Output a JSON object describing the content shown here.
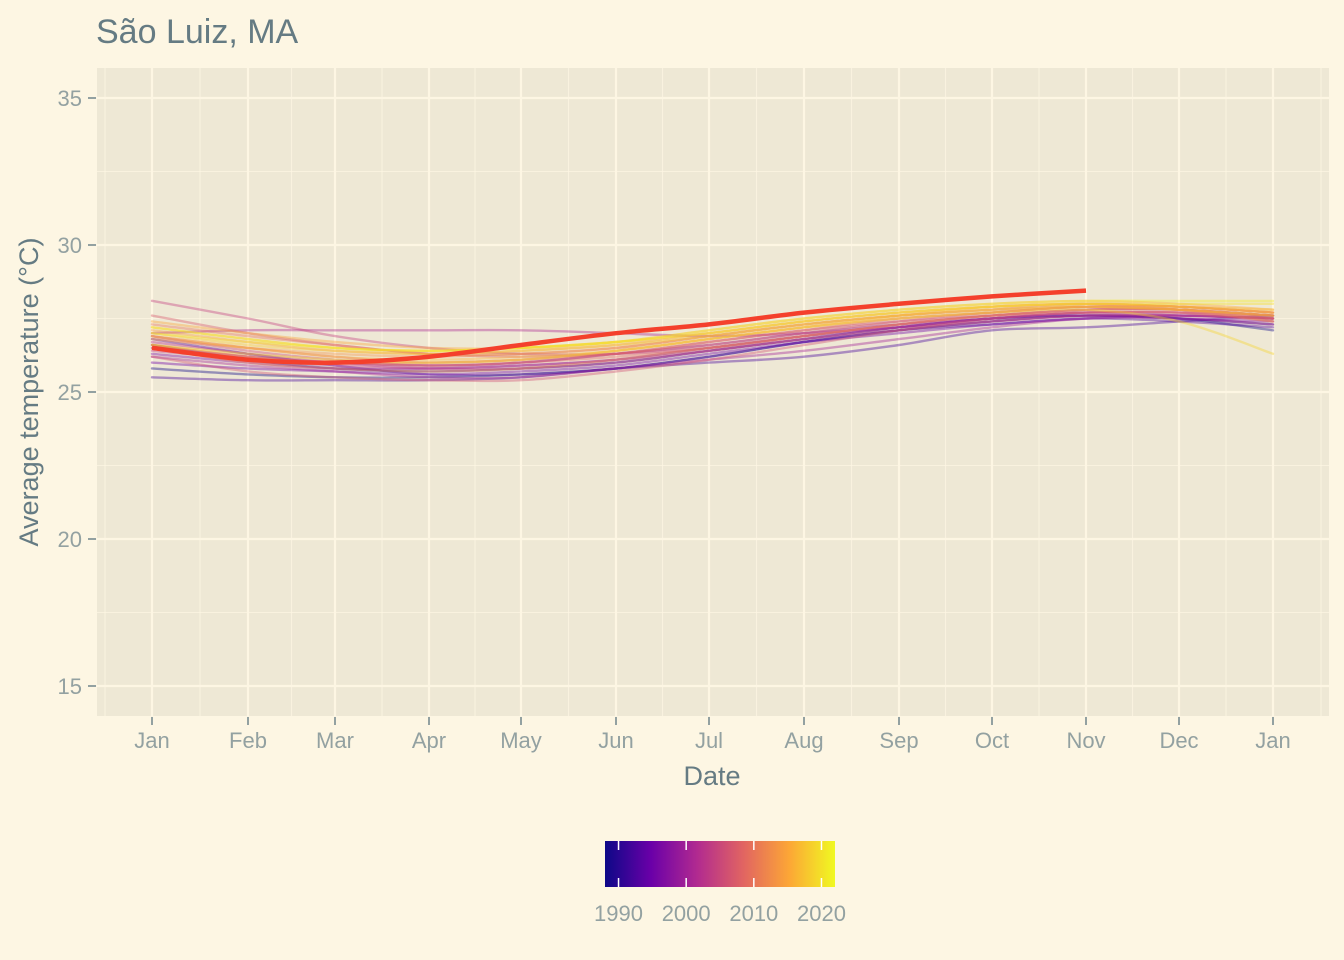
{
  "chart_data": {
    "type": "line",
    "title": "São Luiz, MA",
    "xlabel": "Date",
    "ylabel": "Average temperature (°C)",
    "x_ticks": [
      "Jan",
      "Feb",
      "Mar",
      "Apr",
      "May",
      "Jun",
      "Jul",
      "Aug",
      "Sep",
      "Oct",
      "Nov",
      "Dec",
      "Jan"
    ],
    "ylim": [
      14,
      36
    ],
    "y_ticks": [
      15,
      20,
      25,
      30,
      35
    ],
    "grid": true,
    "legend": {
      "type": "colorbar",
      "placement": "bottom",
      "variable": "year",
      "range": [
        1988,
        2022
      ],
      "ticks": [
        1990,
        2000,
        2010,
        2020
      ],
      "colors": [
        "#0d0887",
        "#6a00a8",
        "#b12a90",
        "#e16462",
        "#fca636",
        "#f0f921"
      ]
    },
    "highlight": {
      "color": "#f4402c",
      "x_months": [
        0,
        1,
        2,
        3,
        4,
        5,
        6,
        7,
        8,
        9,
        10
      ],
      "values": [
        26.5,
        26.1,
        26.0,
        26.2,
        26.6,
        27.0,
        27.3,
        27.7,
        28.0,
        28.25,
        28.45
      ]
    },
    "background_series_note_colors": "colored by year",
    "background_series": [
      {
        "year": 1988,
        "values": [
          25.8,
          25.6,
          25.5,
          25.5,
          25.6,
          25.8,
          26.2,
          26.7,
          27.1,
          27.4,
          27.6,
          27.5,
          27.1
        ]
      },
      {
        "year": 1990,
        "values": [
          26.6,
          26.1,
          25.8,
          25.7,
          25.8,
          26.0,
          26.4,
          26.8,
          27.2,
          27.5,
          27.6,
          27.5,
          27.3
        ]
      },
      {
        "year": 1992,
        "values": [
          25.5,
          25.4,
          25.4,
          25.4,
          25.5,
          25.8,
          26.0,
          26.2,
          26.6,
          27.1,
          27.2,
          27.4,
          27.6
        ]
      },
      {
        "year": 1993,
        "values": [
          26.8,
          26.3,
          25.9,
          25.6,
          25.6,
          25.8,
          26.2,
          26.7,
          27.1,
          27.3,
          27.5,
          27.4,
          27.2
        ]
      },
      {
        "year": 1995,
        "values": [
          26.0,
          25.8,
          25.7,
          25.6,
          25.7,
          25.9,
          26.3,
          26.7,
          27.0,
          27.3,
          27.5,
          27.6,
          27.5
        ]
      },
      {
        "year": 1996,
        "values": [
          26.3,
          26.0,
          25.8,
          25.8,
          25.9,
          26.1,
          26.5,
          26.9,
          27.2,
          27.5,
          27.6,
          27.5,
          27.4
        ]
      },
      {
        "year": 1998,
        "values": [
          26.5,
          26.2,
          26.0,
          25.9,
          26.0,
          26.3,
          26.6,
          27.0,
          27.3,
          27.5,
          27.7,
          27.6,
          27.5
        ]
      },
      {
        "year": 2000,
        "values": [
          26.2,
          25.9,
          25.7,
          25.5,
          25.5,
          25.8,
          26.1,
          26.4,
          26.8,
          27.2,
          27.5,
          27.5,
          27.3
        ]
      },
      {
        "year": 2001,
        "values": [
          27.0,
          27.1,
          27.1,
          27.1,
          27.1,
          27.0,
          26.9,
          27.0,
          27.2,
          27.4,
          27.6,
          27.6,
          27.5
        ]
      },
      {
        "year": 2002,
        "values": [
          26.7,
          26.3,
          26.0,
          25.8,
          25.8,
          26.0,
          26.4,
          26.8,
          27.2,
          27.5,
          27.7,
          27.7,
          27.6
        ]
      },
      {
        "year": 2003,
        "values": [
          26.4,
          26.1,
          25.9,
          25.8,
          25.9,
          26.1,
          26.4,
          26.8,
          27.1,
          27.4,
          27.6,
          27.6,
          27.5
        ]
      },
      {
        "year": 2004,
        "values": [
          28.1,
          27.5,
          26.9,
          26.5,
          26.3,
          26.3,
          26.5,
          26.9,
          27.3,
          27.6,
          27.8,
          27.8,
          27.6
        ]
      },
      {
        "year": 2005,
        "values": [
          26.9,
          26.4,
          26.1,
          25.9,
          26.0,
          26.3,
          26.7,
          27.1,
          27.4,
          27.6,
          27.8,
          27.8,
          27.6
        ]
      },
      {
        "year": 2006,
        "values": [
          26.2,
          25.7,
          25.5,
          25.4,
          25.4,
          25.7,
          26.1,
          26.6,
          27.1,
          27.5,
          27.7,
          27.7,
          27.5
        ]
      },
      {
        "year": 2007,
        "values": [
          27.6,
          27.0,
          26.6,
          26.3,
          26.2,
          26.3,
          26.6,
          27.0,
          27.4,
          27.7,
          27.9,
          27.9,
          27.7
        ]
      },
      {
        "year": 2008,
        "values": [
          26.6,
          26.2,
          26.0,
          25.9,
          26.0,
          26.2,
          26.5,
          26.9,
          27.3,
          27.6,
          27.7,
          27.7,
          27.4
        ]
      },
      {
        "year": 2009,
        "values": [
          26.9,
          26.5,
          26.2,
          26.0,
          26.1,
          26.3,
          26.7,
          27.1,
          27.5,
          27.7,
          27.9,
          27.8,
          27.6
        ]
      },
      {
        "year": 2010,
        "values": [
          27.3,
          26.9,
          26.6,
          26.3,
          26.3,
          26.5,
          26.9,
          27.3,
          27.6,
          27.8,
          28.0,
          27.9,
          27.7
        ]
      },
      {
        "year": 2011,
        "values": [
          26.5,
          26.0,
          25.8,
          25.7,
          25.8,
          26.1,
          26.5,
          26.9,
          27.3,
          27.6,
          27.8,
          27.8,
          27.5
        ]
      },
      {
        "year": 2012,
        "values": [
          26.6,
          26.2,
          26.0,
          26.0,
          26.1,
          26.4,
          26.8,
          27.2,
          27.5,
          27.7,
          27.9,
          27.8,
          27.4
        ]
      },
      {
        "year": 2013,
        "values": [
          26.8,
          26.5,
          26.3,
          26.2,
          26.3,
          26.5,
          26.9,
          27.3,
          27.6,
          27.8,
          27.9,
          27.8,
          27.6
        ]
      },
      {
        "year": 2014,
        "values": [
          27.1,
          26.7,
          26.4,
          26.3,
          26.4,
          26.6,
          27.0,
          27.4,
          27.7,
          27.9,
          28.0,
          27.9,
          27.7
        ]
      },
      {
        "year": 2015,
        "values": [
          27.4,
          27.0,
          26.7,
          26.5,
          26.5,
          26.7,
          27.1,
          27.5,
          27.8,
          28.0,
          28.1,
          28.0,
          27.8
        ]
      },
      {
        "year": 2016,
        "values": [
          26.9,
          26.5,
          26.2,
          26.1,
          26.2,
          26.4,
          26.8,
          27.2,
          27.6,
          27.9,
          28.0,
          27.9,
          27.7
        ]
      },
      {
        "year": 2017,
        "values": [
          27.2,
          26.8,
          26.5,
          26.4,
          26.5,
          26.7,
          27.0,
          27.4,
          27.7,
          27.9,
          28.0,
          27.9,
          27.8
        ]
      },
      {
        "year": 2018,
        "values": [
          27.0,
          26.6,
          26.4,
          26.3,
          26.4,
          26.6,
          26.9,
          27.3,
          27.6,
          27.8,
          27.9,
          27.8,
          27.6
        ]
      },
      {
        "year": 2019,
        "values": [
          26.6,
          26.3,
          26.1,
          26.0,
          26.1,
          26.4,
          26.8,
          27.2,
          27.5,
          27.7,
          27.8,
          27.4,
          26.3
        ]
      },
      {
        "year": 2020,
        "values": [
          27.0,
          26.7,
          26.5,
          26.4,
          26.5,
          26.7,
          27.0,
          27.4,
          27.7,
          27.9,
          28.0,
          28.0,
          28.0
        ]
      },
      {
        "year": 2021,
        "values": [
          27.2,
          26.8,
          26.5,
          26.4,
          26.5,
          26.7,
          27.1,
          27.5,
          27.8,
          28.0,
          28.1,
          28.1,
          28.1
        ]
      }
    ]
  }
}
